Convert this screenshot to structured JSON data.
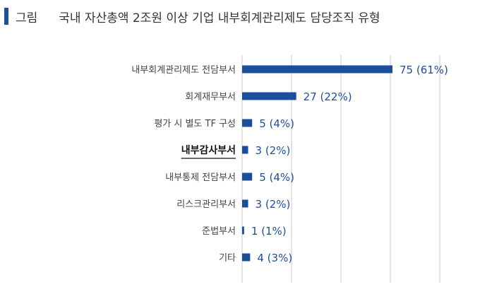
{
  "figure": {
    "label": "그림",
    "title": "국내 자산총액 2조원 이상 기업 내부회계관리제도 담당조직 유형"
  },
  "colors": {
    "bar": "#1b4f9c",
    "accent": "#1f4e9b",
    "grid": "#c8c8c8",
    "text": "#444444",
    "value_text": "#1f4e9b"
  },
  "chart_data": {
    "type": "bar",
    "orientation": "horizontal",
    "title": "국내 자산총액 2조원 이상 기업 내부회계관리제도 담당조직 유형",
    "categories": [
      "내부회계관리제도 전담부서",
      "회계재무부서",
      "평가 시 별도 TF 구성",
      "내부감사부서",
      "내부통제 전담부서",
      "리스크관리부서",
      "준법부서",
      "기타"
    ],
    "values": [
      75,
      27,
      5,
      3,
      5,
      3,
      1,
      4
    ],
    "percents": [
      61,
      22,
      4,
      2,
      4,
      2,
      1,
      3
    ],
    "value_labels": [
      "75 (61%)",
      "27 (22%)",
      "5 (4%)",
      "3 (2%)",
      "5 (4%)",
      "3 (2%)",
      "1 (1%)",
      "4 (3%)"
    ],
    "highlighted_category": "내부감사부서",
    "xlim": [
      0,
      80
    ],
    "grid": true,
    "legend": "none"
  }
}
